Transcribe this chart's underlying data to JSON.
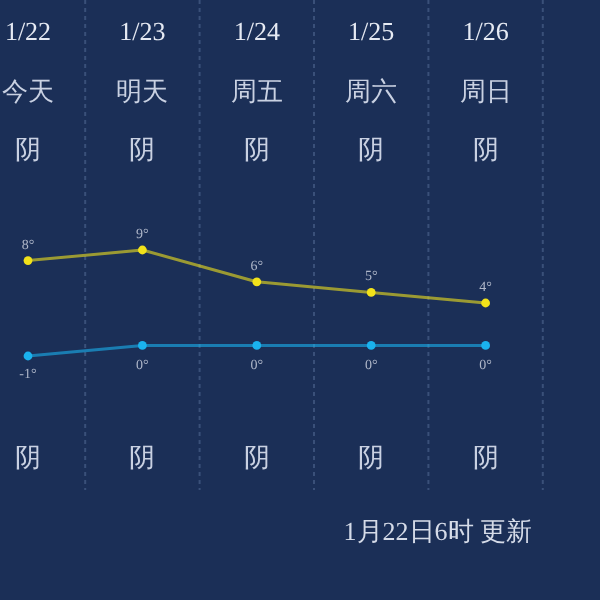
{
  "chart_data": {
    "type": "line",
    "categories": [
      "1/22",
      "1/23",
      "1/24",
      "1/25",
      "1/26"
    ],
    "series": [
      {
        "color": "#f2e21a",
        "values": [
          8,
          9,
          6,
          5,
          4
        ],
        "value_labels": [
          "8°",
          "9°",
          "6°",
          "5°",
          "4°"
        ]
      },
      {
        "color": "#1ab2ee",
        "values": [
          -1,
          0,
          0,
          0,
          0
        ],
        "value_labels": [
          "-1°",
          "0°",
          "0°",
          "0°",
          "0°"
        ]
      }
    ],
    "marker": "circle",
    "grid": "x",
    "annotations": [
      "今天",
      "明天",
      "周五",
      "周六",
      "周日",
      "阴",
      "阴",
      "阴",
      "阴",
      "阴",
      "阴",
      "阴",
      "阴",
      "阴",
      "阴",
      "1月22日6时 更新"
    ]
  }
}
